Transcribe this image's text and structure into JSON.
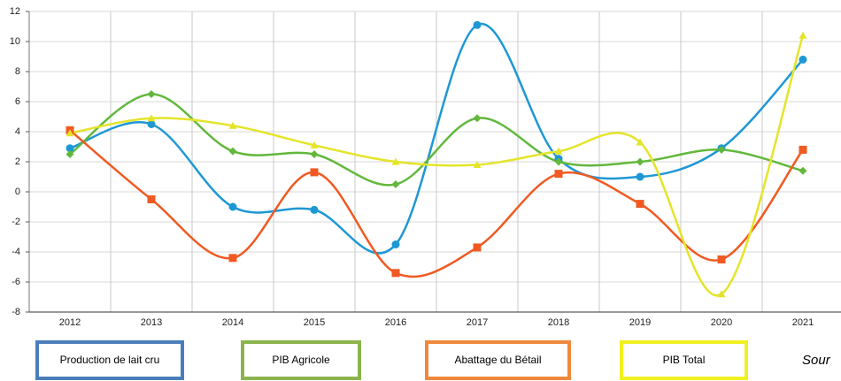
{
  "chart_data": {
    "type": "line",
    "categories": [
      "2012",
      "2013",
      "2014",
      "2015",
      "2016",
      "2017",
      "2018",
      "2019",
      "2020",
      "2021"
    ],
    "series": [
      {
        "name": "Production de lait cru",
        "color": "#1e98d4",
        "legend_color": "#4a7ebb",
        "marker": "circle",
        "values": [
          2.9,
          4.5,
          -1.0,
          -1.2,
          -3.5,
          11.1,
          2.2,
          1.0,
          2.9,
          8.8
        ]
      },
      {
        "name": "PIB Agricole",
        "color": "#62b83c",
        "legend_color": "#8cb44c",
        "marker": "diamond",
        "values": [
          2.5,
          6.5,
          2.7,
          2.5,
          0.5,
          4.9,
          2.0,
          2.0,
          2.8,
          1.4
        ]
      },
      {
        "name": "Abattage du Bétail",
        "color": "#f05a22",
        "legend_color": "#f0883c",
        "marker": "square",
        "values": [
          4.1,
          -0.5,
          -4.4,
          1.3,
          -5.4,
          -3.7,
          1.2,
          -0.8,
          -4.5,
          2.8
        ]
      },
      {
        "name": "PIB Total",
        "color": "#e4e42a",
        "legend_color": "#f0f020",
        "marker": "triangle",
        "values": [
          3.9,
          4.9,
          4.4,
          3.1,
          2.0,
          1.8,
          2.7,
          3.3,
          -6.8,
          10.4
        ]
      }
    ],
    "ylim": [
      -8,
      12
    ],
    "yticks": [
      -8,
      -6,
      -4,
      -2,
      0,
      2,
      4,
      6,
      8,
      10,
      12
    ],
    "grid": true,
    "source_note": "Sour"
  }
}
